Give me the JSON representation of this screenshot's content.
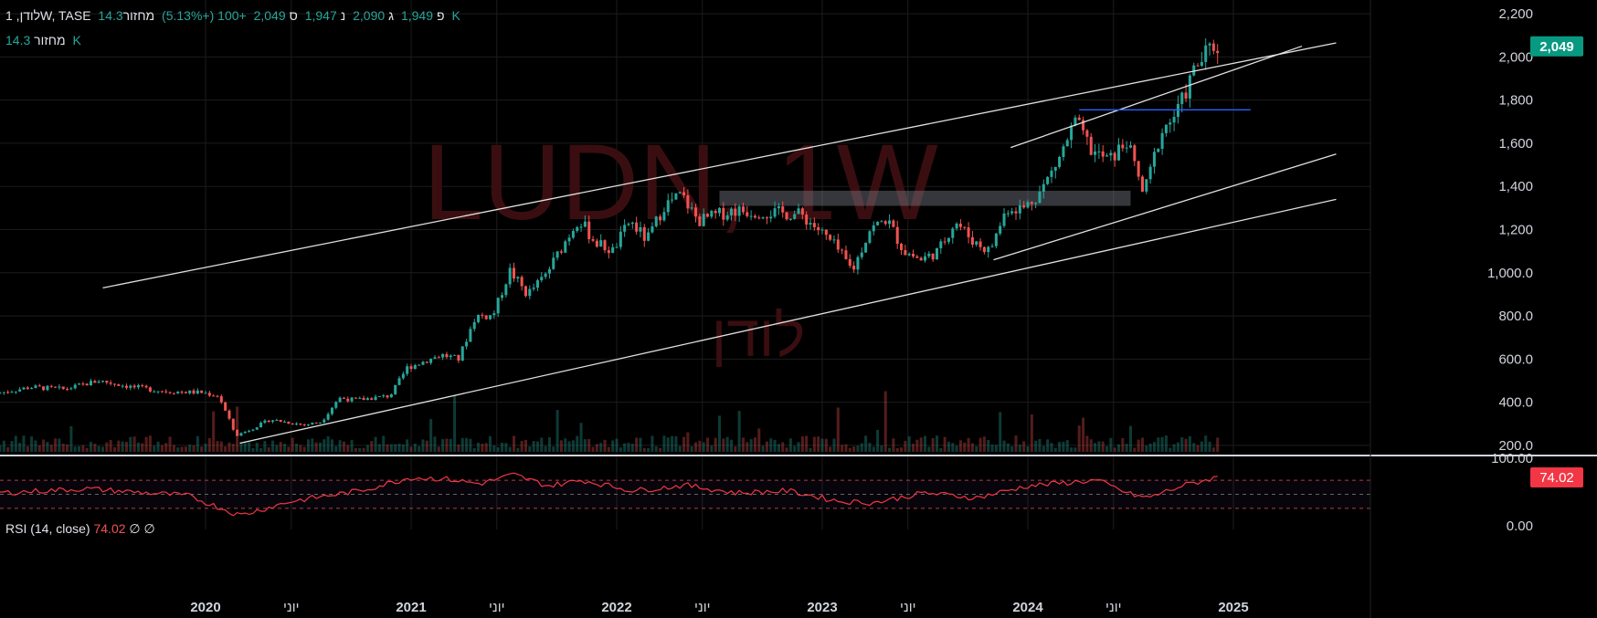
{
  "header": {
    "symbol": "לודן, 1W, TASE",
    "open_label": "פ",
    "open": "1,949",
    "high_label": "ג",
    "high": "2,090",
    "low_label": "נ",
    "low": "1,947",
    "close_label": "ס",
    "close": "2,049",
    "change": "+100 (+5.13%)",
    "volume_label": "מחזור",
    "volume": "14.3 K",
    "volume_row_label": "מחזור",
    "volume_row_value": "14.3 K"
  },
  "watermark": {
    "ticker": "LUDN, 1W",
    "name": "לודן"
  },
  "rsi": {
    "title": "RSI (14, close)",
    "value": "74.02",
    "extra1": "∅",
    "extra2": "∅"
  },
  "colors": {
    "up": "#26a69a",
    "down": "#ef5350",
    "price_tag": "#089981",
    "rsi_line": "#f23645",
    "resistance": "#2962ff"
  },
  "chart_data": {
    "type": "candlestick",
    "timeframe": "1W",
    "x_range": [
      "2019-01",
      "2025-09"
    ],
    "x_ticks": [
      "2020",
      "יוני",
      "2021",
      "יוני",
      "2022",
      "יוני",
      "2023",
      "יוני",
      "2024",
      "יוני",
      "2025"
    ],
    "y_ticks": [
      "200.0",
      "400.0",
      "600.0",
      "800.0",
      "1,000.0",
      "1,200",
      "1,400",
      "1,600",
      "1,800",
      "2,000",
      "2,200"
    ],
    "ylim": [
      170,
      2230
    ],
    "last_price": 2049,
    "price_anchors": [
      [
        "2019-01",
        440
      ],
      [
        "2019-03",
        470
      ],
      [
        "2019-05",
        460
      ],
      [
        "2019-07",
        500
      ],
      [
        "2019-09",
        470
      ],
      [
        "2019-11",
        450
      ],
      [
        "2020-01",
        445
      ],
      [
        "2020-02",
        430
      ],
      [
        "2020-03",
        245
      ],
      [
        "2020-04",
        280
      ],
      [
        "2020-05",
        320
      ],
      [
        "2020-07",
        295
      ],
      [
        "2020-08",
        310
      ],
      [
        "2020-09",
        420
      ],
      [
        "2020-10",
        410
      ],
      [
        "2020-12",
        430
      ],
      [
        "2021-01",
        560
      ],
      [
        "2021-03",
        620
      ],
      [
        "2021-04",
        600
      ],
      [
        "2021-05",
        800
      ],
      [
        "2021-06",
        800
      ],
      [
        "2021-07",
        1010
      ],
      [
        "2021-08",
        900
      ],
      [
        "2021-09",
        980
      ],
      [
        "2021-11",
        1250
      ],
      [
        "2021-12",
        1140
      ],
      [
        "2022-01",
        1100
      ],
      [
        "2022-02",
        1240
      ],
      [
        "2022-03",
        1150
      ],
      [
        "2022-04",
        1310
      ],
      [
        "2022-05",
        1360
      ],
      [
        "2022-06",
        1240
      ],
      [
        "2022-08",
        1290
      ],
      [
        "2022-10",
        1280
      ],
      [
        "2022-12",
        1270
      ],
      [
        "2023-01",
        1200
      ],
      [
        "2023-02",
        1120
      ],
      [
        "2023-03",
        1010
      ],
      [
        "2023-04",
        1200
      ],
      [
        "2023-05",
        1250
      ],
      [
        "2023-06",
        1100
      ],
      [
        "2023-07",
        1060
      ],
      [
        "2023-08",
        1100
      ],
      [
        "2023-09",
        1240
      ],
      [
        "2023-10",
        1150
      ],
      [
        "2023-11",
        1100
      ],
      [
        "2023-12",
        1300
      ],
      [
        "2024-01",
        1300
      ],
      [
        "2024-02",
        1380
      ],
      [
        "2024-03",
        1520
      ],
      [
        "2024-04",
        1700
      ],
      [
        "2024-05",
        1560
      ],
      [
        "2024-06",
        1520
      ],
      [
        "2024-07",
        1610
      ],
      [
        "2024-08",
        1360
      ],
      [
        "2024-09",
        1650
      ],
      [
        "2024-10",
        1750
      ],
      [
        "2024-11",
        1950
      ],
      [
        "2024-12",
        2049
      ]
    ],
    "volume_axis": "none",
    "trendlines": [
      {
        "name": "upper-channel",
        "from": [
          "2019-07",
          930
        ],
        "to": [
          "2025-07",
          2065
        ]
      },
      {
        "name": "lower-channel",
        "from": [
          "2020-03",
          210
        ],
        "to": [
          "2025-07",
          1340
        ]
      },
      {
        "name": "inner-upper",
        "from": [
          "2023-12",
          1580
        ],
        "to": [
          "2025-05",
          2050
        ]
      },
      {
        "name": "inner-lower",
        "from": [
          "2023-11",
          1060
        ],
        "to": [
          "2025-07",
          1550
        ]
      },
      {
        "name": "resistance",
        "from": [
          "2024-04",
          1755
        ],
        "to": [
          "2025-02",
          1755
        ]
      }
    ],
    "zone": {
      "from": "2022-07",
      "to": "2024-07",
      "low": 1310,
      "high": 1380
    },
    "rsi": {
      "ylim": [
        0,
        100
      ],
      "y_ticks": [
        "0.00",
        "100.00"
      ],
      "levels": [
        70,
        50,
        30
      ],
      "value": 74.02,
      "anchors": [
        [
          "2019-01",
          52
        ],
        [
          "2019-06",
          58
        ],
        [
          "2019-12",
          48
        ],
        [
          "2020-03",
          20
        ],
        [
          "2020-06",
          40
        ],
        [
          "2020-10",
          55
        ],
        [
          "2021-01",
          74
        ],
        [
          "2021-03",
          72
        ],
        [
          "2021-05",
          65
        ],
        [
          "2021-07",
          78
        ],
        [
          "2021-09",
          62
        ],
        [
          "2021-11",
          70
        ],
        [
          "2022-02",
          55
        ],
        [
          "2022-05",
          63
        ],
        [
          "2022-08",
          52
        ],
        [
          "2022-11",
          55
        ],
        [
          "2023-02",
          40
        ],
        [
          "2023-04",
          38
        ],
        [
          "2023-07",
          52
        ],
        [
          "2023-10",
          45
        ],
        [
          "2024-01",
          62
        ],
        [
          "2024-03",
          66
        ],
        [
          "2024-05",
          70
        ],
        [
          "2024-07",
          50
        ],
        [
          "2024-08",
          45
        ],
        [
          "2024-10",
          62
        ],
        [
          "2024-12",
          74
        ]
      ]
    }
  }
}
